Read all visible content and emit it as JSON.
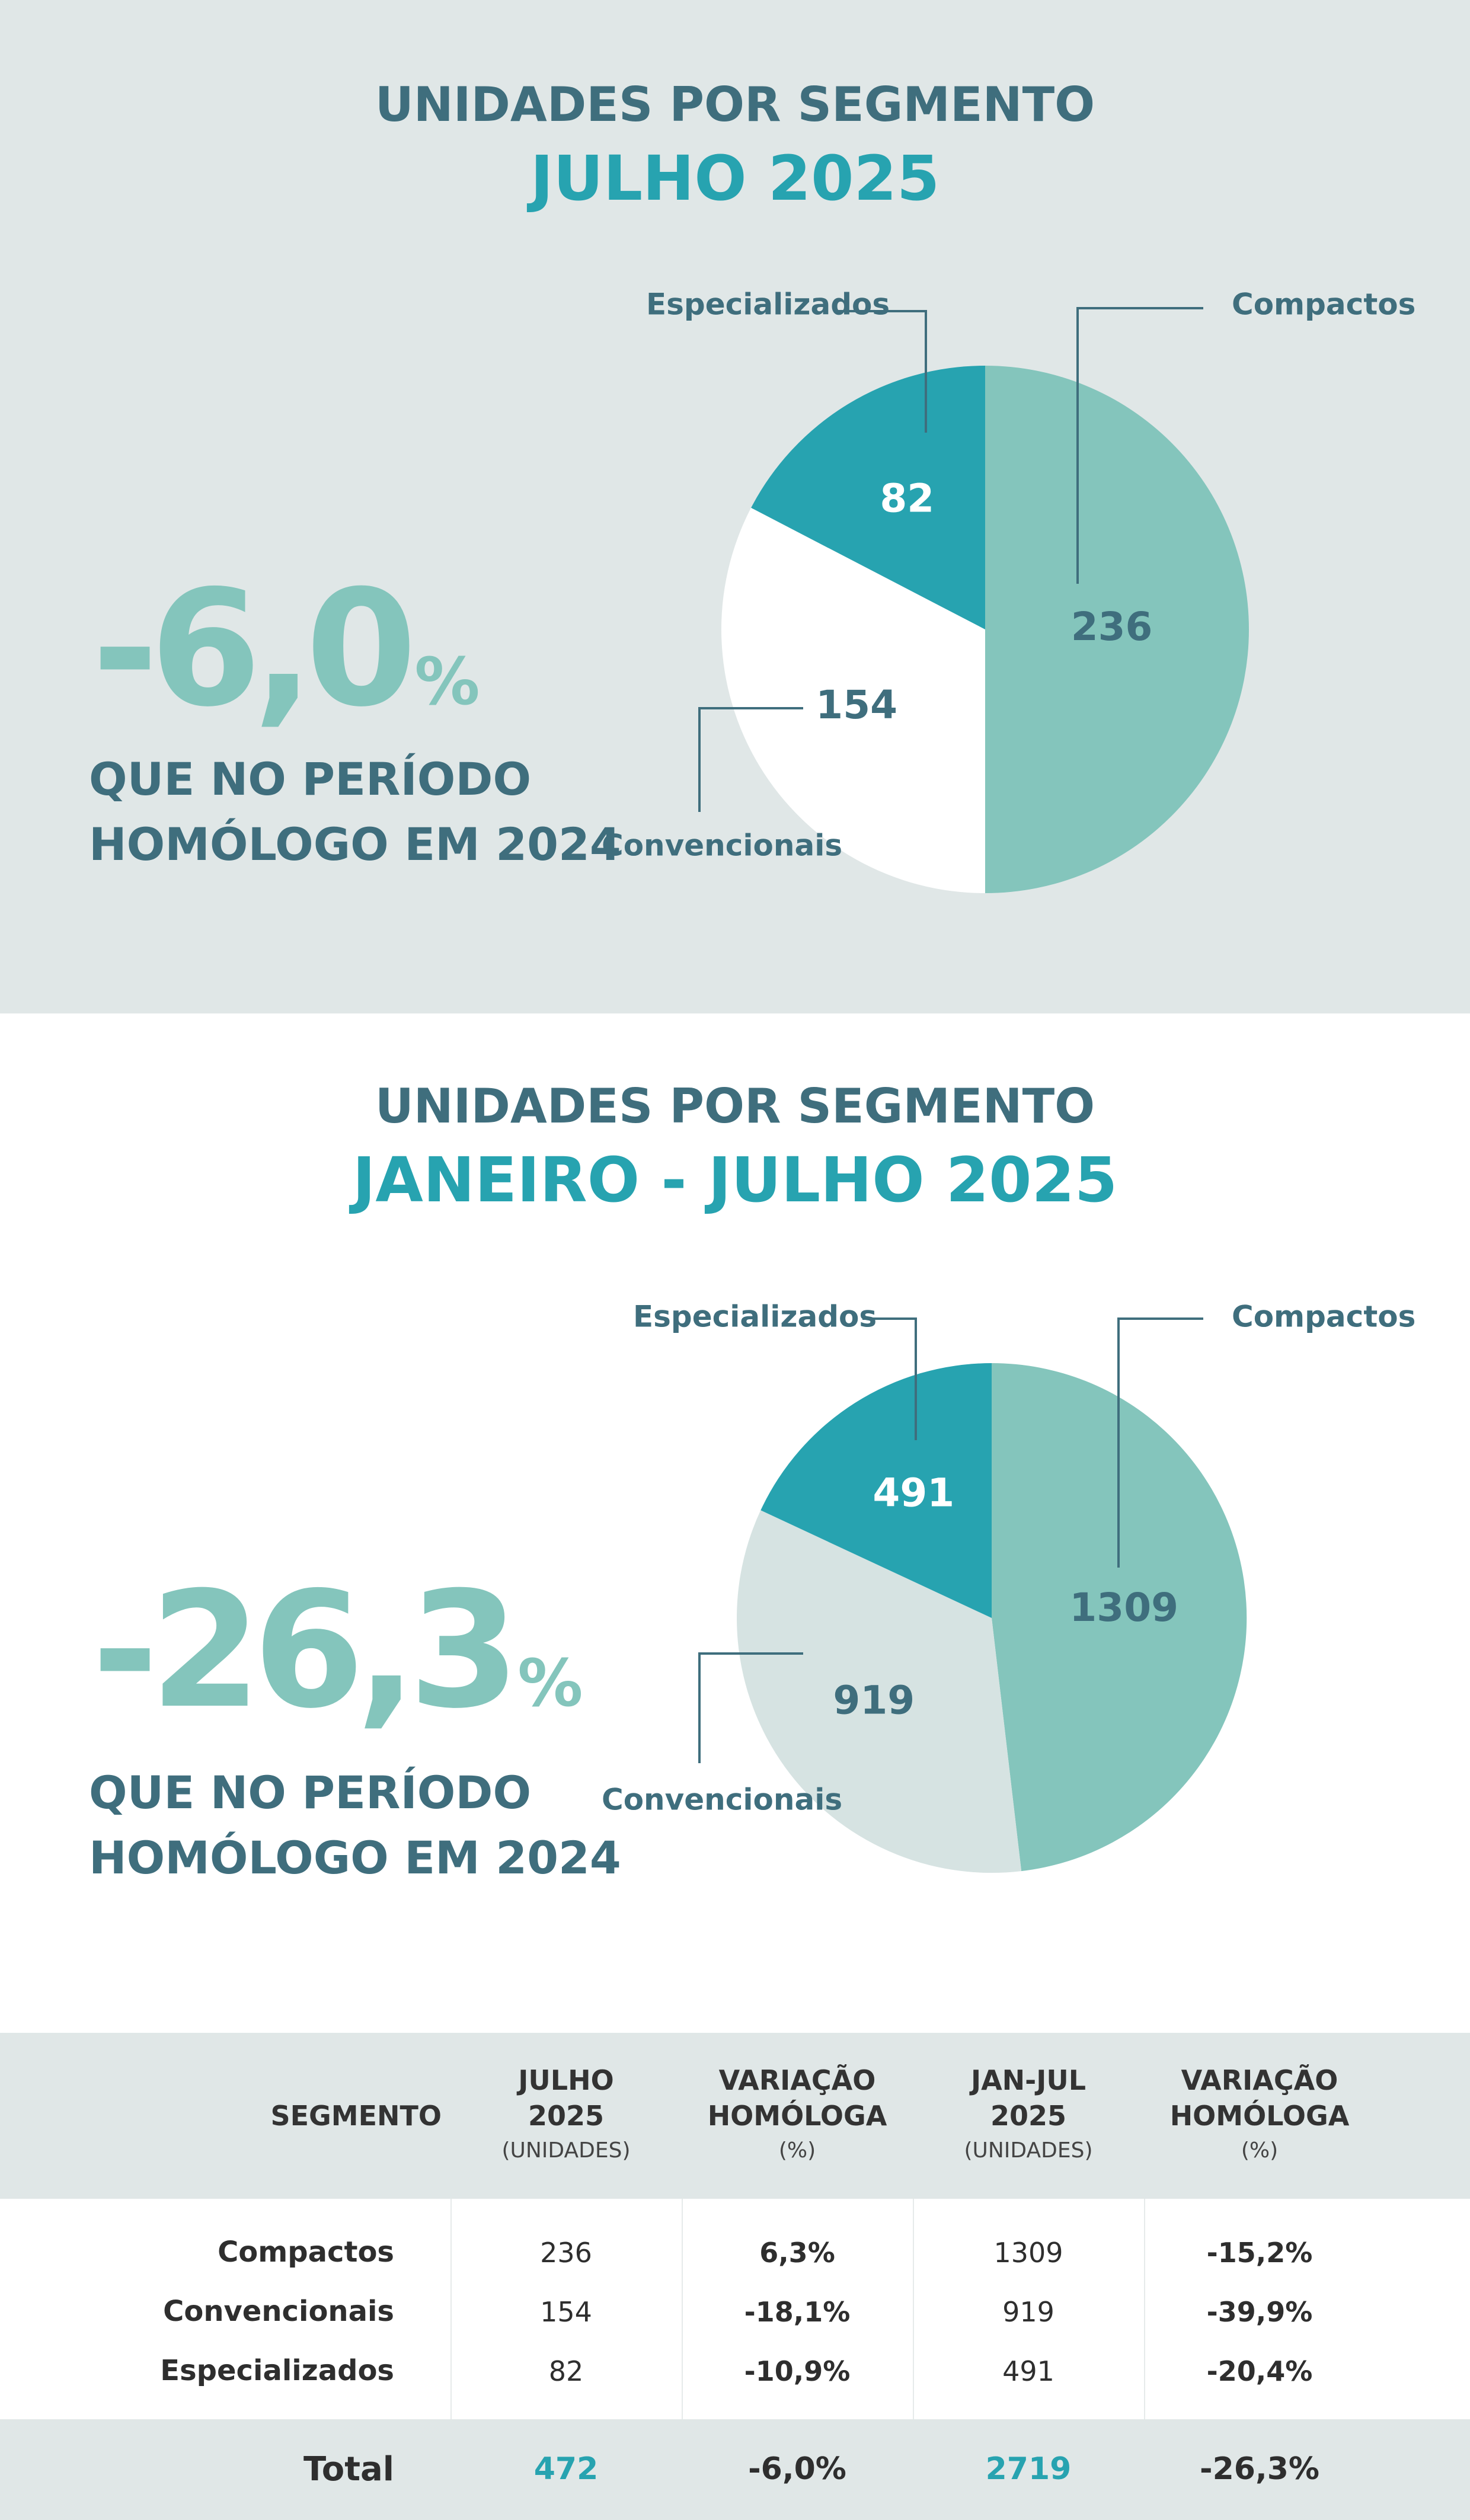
{
  "colors": {
    "compactos": "#84c5bc",
    "especializados": "#27a3b0",
    "convencionais_jul": "#ffffff",
    "convencionais_ytd": "#d6e3e2",
    "heading": "#3f6e7d",
    "accent": "#27a3b0",
    "big_number": "#84c5bc"
  },
  "section1": {
    "title": "UNIDADES POR SEGMENTO",
    "subtitle": "JULHO 2025",
    "big_value": "-6,0",
    "big_unit": "%",
    "caption": "QUE NO PERÍODO HOMÓLOGO EM 2024"
  },
  "section2": {
    "title": "UNIDADES POR SEGMENTO",
    "subtitle": "JANEIRO - JULHO 2025",
    "big_value": "-26,3",
    "big_unit": "%",
    "caption": "QUE NO PERÍODO HOMÓLOGO EM 2024"
  },
  "chart_data": [
    {
      "type": "pie",
      "title": "JULHO 2025",
      "categories": [
        "Compactos",
        "Convencionais",
        "Especializados"
      ],
      "values": [
        236,
        154,
        82
      ]
    },
    {
      "type": "pie",
      "title": "JANEIRO - JULHO 2025",
      "categories": [
        "Compactos",
        "Convencionais",
        "Especializados"
      ],
      "values": [
        1309,
        919,
        491
      ]
    },
    {
      "type": "table",
      "columns": [
        "SEGMENTO",
        "JULHO 2025 (UNIDADES)",
        "VARIAÇÃO HOMÓLOGA (%)",
        "JAN-JUL 2025 (UNIDADES)",
        "VARIAÇÃO HOMÓLOGA (%)"
      ],
      "rows": [
        [
          "Compactos",
          "236",
          "6,3%",
          "1309",
          "-15,2%"
        ],
        [
          "Convencionais",
          "154",
          "-18,1%",
          "919",
          "-39,9%"
        ],
        [
          "Especializados",
          "82",
          "-10,9%",
          "491",
          "-20,4%"
        ]
      ],
      "total": [
        "Total",
        "472",
        "-6,0%",
        "2719",
        "-26,3%"
      ]
    }
  ],
  "table": {
    "headers": [
      {
        "l1": "SEGMENTO",
        "l2": "",
        "l3": ""
      },
      {
        "l1": "JULHO",
        "l2": "2025",
        "l3": "(UNIDADES)"
      },
      {
        "l1": "VARIAÇÃO",
        "l2": "HOMÓLOGA",
        "l3": "(%)"
      },
      {
        "l1": "JAN-JUL",
        "l2": "2025",
        "l3": "(UNIDADES)"
      },
      {
        "l1": "VARIAÇÃO",
        "l2": "HOMÓLOGA",
        "l3": "(%)"
      }
    ],
    "rows": [
      {
        "segment": "Compactos",
        "jul": "236",
        "var_jul": "6,3%",
        "ytd": "1309",
        "var_ytd": "-15,2%"
      },
      {
        "segment": "Convencionais",
        "jul": "154",
        "var_jul": "-18,1%",
        "ytd": "919",
        "var_ytd": "-39,9%"
      },
      {
        "segment": "Especializados",
        "jul": "82",
        "var_jul": "-10,9%",
        "ytd": "491",
        "var_ytd": "-20,4%"
      }
    ],
    "total": {
      "segment": "Total",
      "jul": "472",
      "var_jul": "-6,0%",
      "ytd": "2719",
      "var_ytd": "-26,3%"
    }
  }
}
